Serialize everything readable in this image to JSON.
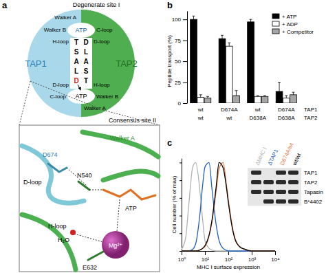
{
  "panel_labels": [
    "a",
    "b",
    "c"
  ],
  "diagram": {
    "top_site": "Degenerate site I",
    "bottom_site": "Consensus site II",
    "subunits": [
      "TAP1",
      "TAP2"
    ],
    "atp": [
      "ATP",
      "ATP"
    ],
    "tap1_top": [
      "Walker A",
      "Walker B",
      "H-loop"
    ],
    "tap1_bottom": [
      "D-loop",
      "C-loop"
    ],
    "tap2_top": [
      "C-loop",
      "D-loop"
    ],
    "tap2_bottom": [
      "H-loop",
      "Walker B",
      "Walker A"
    ],
    "tap1_signature": [
      "T",
      "S",
      "A",
      "L",
      "D"
    ],
    "tap2_signature": [
      "D",
      "L",
      "A",
      "S",
      "T"
    ]
  },
  "structure": {
    "labels": [
      "D674",
      "D-loop",
      "N540",
      "Walker A",
      "H-loop",
      "ATP",
      "H₂O",
      "Mg²⁺",
      "E632"
    ]
  },
  "chart_data": [
    {
      "type": "bar",
      "categories": [
        [
          "wt",
          "wt"
        ],
        [
          "D674A",
          "wt"
        ],
        [
          "wt",
          "D638A"
        ],
        [
          "D674A",
          "D638A"
        ]
      ],
      "category_rows": [
        "TAP1",
        "TAP2"
      ],
      "y_label": "Peptide transport (%)",
      "ylim": [
        0,
        110
      ],
      "yticks": [
        0,
        25,
        50,
        75,
        100
      ],
      "legend": "upper right",
      "series": [
        {
          "name": "+ ATP",
          "color": "#000000",
          "values": [
            100,
            77,
            97,
            14
          ],
          "errors": [
            4,
            4,
            3,
            11
          ]
        },
        {
          "name": "+ ADP",
          "color": "#ffffff",
          "values": [
            7,
            68,
            8,
            6
          ],
          "errors": [
            3,
            4,
            1,
            3
          ]
        },
        {
          "name": "+ Competitor",
          "color": "#a6a6a6",
          "values": [
            6,
            9,
            8,
            10
          ],
          "errors": [
            2,
            6,
            1,
            3
          ]
        }
      ]
    },
    {
      "type": "line",
      "x": [
        1,
        1.5,
        2,
        3,
        4,
        6,
        8,
        10,
        15,
        20,
        30,
        40,
        60,
        80,
        100,
        150,
        200,
        300,
        500,
        1000,
        10000
      ],
      "xlim": [
        1,
        10000
      ],
      "xticks": [
        {
          "value": 1,
          "label": "10⁰"
        },
        {
          "value": 10,
          "label": "10¹"
        },
        {
          "value": 100,
          "label": "10²"
        },
        {
          "value": 1000,
          "label": "10³"
        },
        {
          "value": 10000,
          "label": "10⁴"
        }
      ],
      "log": "x",
      "x_label": "MHC I surface expression",
      "y_label": "Cell number (% of max)",
      "ylim": [
        0,
        105
      ],
      "yticks": [
        0,
        20,
        40,
        60,
        80,
        100
      ],
      "tick_labels": "x",
      "series": [
        {
          "name": "ΔMHC I",
          "color": "#b0b0b0",
          "values": [
            2,
            15,
            50,
            95,
            100,
            70,
            35,
            12,
            3,
            1,
            0,
            0,
            0,
            0,
            0,
            0,
            0,
            0,
            0,
            0,
            0
          ]
        },
        {
          "name": "ΔTAP1",
          "color": "#2060c0",
          "values": [
            0,
            0,
            0,
            2,
            8,
            40,
            75,
            95,
            100,
            70,
            30,
            12,
            3,
            1,
            0,
            0,
            0,
            0,
            0,
            0,
            0
          ]
        },
        {
          "name": "D674A/wt",
          "color": "#e8733a",
          "values": [
            0,
            0,
            0,
            0,
            0,
            1,
            3,
            5,
            17,
            33,
            68,
            93,
            100,
            78,
            58,
            27,
            13,
            5,
            2,
            0,
            0
          ]
        },
        {
          "name": "wt/wt",
          "color": "#000000",
          "values": [
            0,
            0,
            0,
            0,
            0,
            1,
            3,
            6,
            18,
            35,
            72,
            100,
            94,
            75,
            55,
            25,
            12,
            5,
            2,
            0,
            0
          ]
        }
      ]
    }
  ],
  "blot": {
    "rows": [
      "TAP1",
      "TAP2",
      "Tapasin",
      "B*4402"
    ],
    "bands": [
      [
        true,
        false,
        true,
        true
      ],
      [
        true,
        true,
        true,
        true
      ],
      [
        true,
        true,
        true,
        true
      ],
      [
        false,
        true,
        true,
        true
      ]
    ]
  }
}
